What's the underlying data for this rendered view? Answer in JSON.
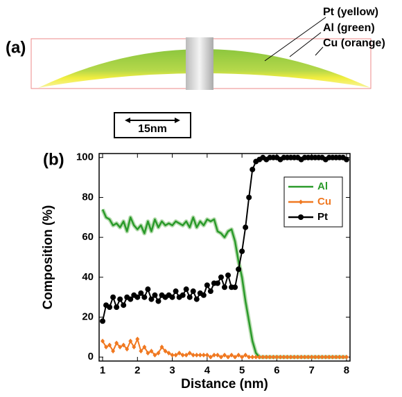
{
  "panel_a": {
    "label": "(a)",
    "annotations": [
      "Pt (yellow)",
      "Al (green)",
      "Cu (orange)"
    ],
    "scale_bar": "15nm"
  },
  "chart_data": {
    "type": "line",
    "panel_label": "(b)",
    "x_label": "Distance (nm)",
    "y_label": "Composition (%)",
    "x": [
      1,
      1.1,
      1.2,
      1.3,
      1.4,
      1.5,
      1.6,
      1.7,
      1.8,
      1.9,
      2,
      2.1,
      2.2,
      2.3,
      2.4,
      2.5,
      2.6,
      2.7,
      2.8,
      2.9,
      3,
      3.1,
      3.2,
      3.3,
      3.4,
      3.5,
      3.6,
      3.7,
      3.8,
      3.9,
      4,
      4.1,
      4.2,
      4.3,
      4.4,
      4.5,
      4.6,
      4.7,
      4.8,
      4.9,
      5,
      5.1,
      5.2,
      5.3,
      5.4,
      5.5,
      5.6,
      5.7,
      5.8,
      5.9,
      6,
      6.1,
      6.2,
      6.3,
      6.4,
      6.5,
      6.6,
      6.7,
      6.8,
      6.9,
      7,
      7.1,
      7.2,
      7.3,
      7.4,
      7.5,
      7.6,
      7.7,
      7.8,
      7.9,
      8
    ],
    "series": [
      {
        "name": "Al",
        "color": "#2a9a2a",
        "marker": "none",
        "values": [
          74,
          70,
          69,
          66,
          67,
          65,
          68,
          63,
          70,
          66,
          64,
          66,
          62,
          68,
          63,
          69,
          65,
          68,
          66,
          67,
          66,
          68,
          67,
          66,
          68,
          65,
          70,
          65,
          68,
          66,
          69,
          68,
          69,
          63,
          62,
          60,
          63,
          64,
          58,
          48,
          40,
          28,
          18,
          8,
          2,
          0,
          0,
          0,
          0,
          0,
          0,
          0,
          0,
          0,
          0,
          0,
          0,
          0,
          0,
          0,
          0,
          0,
          0,
          0,
          0,
          0,
          0,
          0,
          0,
          0,
          0
        ]
      },
      {
        "name": "Cu",
        "color": "#f07820",
        "marker": "diamond",
        "values": [
          8,
          5,
          6,
          3,
          7,
          5,
          6,
          4,
          8,
          5,
          9,
          3,
          5,
          2,
          3,
          1,
          2,
          5,
          3,
          2,
          1,
          1,
          2,
          1,
          1,
          2,
          1,
          1,
          1,
          1,
          1,
          0,
          1,
          1,
          0,
          1,
          0,
          1,
          0,
          1,
          0,
          1,
          0,
          0,
          0,
          0,
          0,
          0,
          0,
          0,
          0,
          0,
          0,
          0,
          0,
          0,
          0,
          0,
          0,
          0,
          0,
          0,
          0,
          0,
          0,
          0,
          0,
          0,
          0,
          0,
          0
        ]
      },
      {
        "name": "Pt",
        "color": "#000000",
        "marker": "circle",
        "values": [
          18,
          26,
          25,
          30,
          25,
          29,
          26,
          30,
          29,
          31,
          30,
          32,
          30,
          34,
          29,
          31,
          28,
          31,
          30,
          31,
          30,
          33,
          30,
          31,
          34,
          30,
          33,
          29,
          32,
          31,
          36,
          33,
          37,
          37,
          40,
          35,
          41,
          35,
          35,
          44,
          53,
          65,
          80,
          94,
          98,
          99,
          100,
          99,
          100,
          100,
          100,
          99,
          100,
          100,
          100,
          100,
          100,
          99,
          100,
          100,
          100,
          100,
          100,
          100,
          99,
          100,
          100,
          100,
          100,
          100,
          99
        ]
      }
    ],
    "xlim": [
      0.9,
      8.1
    ],
    "ylim": [
      -2,
      102
    ],
    "xticks": [
      1,
      2,
      3,
      4,
      5,
      6,
      7,
      8
    ],
    "yticks": [
      0,
      20,
      40,
      60,
      80,
      100
    ],
    "legend_position": "right"
  }
}
